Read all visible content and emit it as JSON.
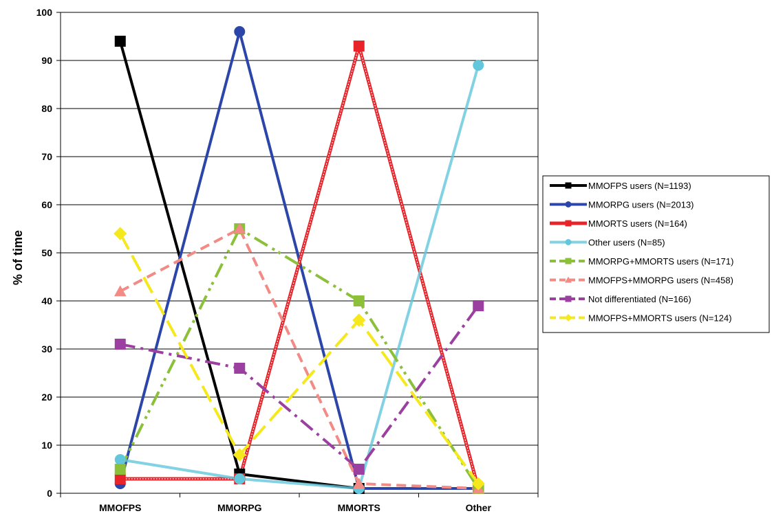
{
  "chart_data": {
    "type": "line",
    "title": "",
    "xlabel": "",
    "ylabel": "% of time",
    "ylim": [
      0,
      100
    ],
    "yticks": [
      0,
      10,
      20,
      30,
      40,
      50,
      60,
      70,
      80,
      90,
      100
    ],
    "categories": [
      "MMOFPS",
      "MMORPG",
      "MMORTS",
      "Other"
    ],
    "grid": "horizontal",
    "legend_position": "right",
    "series": [
      {
        "name": "MMOFPS users (N=1193)",
        "values": [
          94,
          4,
          1,
          1
        ],
        "color": "#000000",
        "marker": "square",
        "dash": "solid"
      },
      {
        "name": "MMORPG users (N=2013)",
        "values": [
          2,
          96,
          1,
          1
        ],
        "color": "#2b46a8",
        "marker": "circle",
        "dash": "solid"
      },
      {
        "name": "MMORTS users (N=164)",
        "values": [
          3,
          3,
          93,
          1
        ],
        "color": "#e8242a",
        "marker": "square",
        "dash": "double"
      },
      {
        "name": "Other users (N=85)",
        "values": [
          7,
          3,
          1,
          89
        ],
        "color": "#63c7dc",
        "marker": "circle",
        "dash": "solid-light"
      },
      {
        "name": "MMORPG+MMORTS users (N=171)",
        "values": [
          5,
          55,
          40,
          1
        ],
        "color": "#8cbf3a",
        "marker": "square",
        "dash": "dash-dot-dot"
      },
      {
        "name": "MMOFPS+MMORPG users (N=458)",
        "values": [
          42,
          55,
          2,
          1
        ],
        "color": "#f28a85",
        "marker": "triangle",
        "dash": "dash"
      },
      {
        "name": "Not differentiated (N=166)",
        "values": [
          31,
          26,
          5,
          39
        ],
        "color": "#9b3fa0",
        "marker": "square",
        "dash": "dash-dot"
      },
      {
        "name": "MMOFPS+MMORTS users (N=124)",
        "values": [
          54,
          8,
          36,
          2
        ],
        "color": "#f5e81c",
        "marker": "diamond",
        "dash": "long-dash"
      }
    ]
  }
}
